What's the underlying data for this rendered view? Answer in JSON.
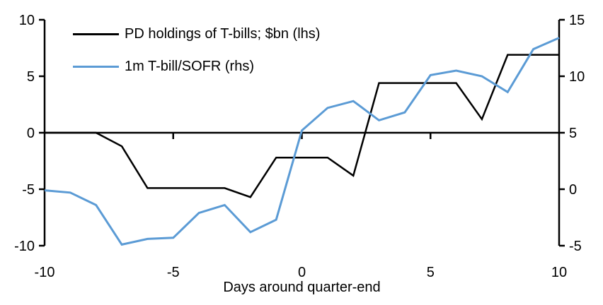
{
  "chart_data": {
    "type": "line",
    "title": "",
    "xlabel": "Days around quarter-end",
    "x": [
      -10,
      -9,
      -8,
      -7,
      -6,
      -5,
      -4,
      -3,
      -2,
      -1,
      0,
      1,
      2,
      3,
      4,
      5,
      6,
      7,
      8,
      9,
      10
    ],
    "xlim": [
      -10,
      10
    ],
    "x_ticks": [
      -10,
      -5,
      0,
      5,
      10
    ],
    "left_axis": {
      "ylim": [
        -10,
        10
      ],
      "ticks": [
        10,
        5,
        0,
        -5,
        -10
      ]
    },
    "right_axis": {
      "ylim": [
        -5,
        15
      ],
      "ticks": [
        15,
        10,
        5,
        0,
        -5
      ]
    },
    "grid": false,
    "zero_line": true,
    "legend_position": "top-left",
    "series": [
      {
        "name": "PD holdings of T-bills; $bn (lhs)",
        "axis": "left",
        "color": "#000000",
        "values": [
          0,
          0,
          0,
          -1.2,
          -4.9,
          -4.9,
          -4.9,
          -4.9,
          -5.7,
          -2.2,
          -2.2,
          -2.2,
          -3.8,
          4.4,
          4.4,
          4.4,
          4.4,
          1.2,
          6.9,
          6.9,
          6.9
        ]
      },
      {
        "name": "1m T-bill/SOFR (rhs)",
        "axis": "right",
        "color": "#5B9BD5",
        "values": [
          -0.1,
          -0.3,
          -1.4,
          -4.9,
          -4.4,
          -4.3,
          -2.1,
          -1.4,
          -3.8,
          -2.7,
          5.2,
          7.2,
          7.8,
          6.1,
          6.8,
          10.1,
          10.5,
          10.0,
          8.6,
          12.4,
          13.4
        ]
      }
    ]
  }
}
